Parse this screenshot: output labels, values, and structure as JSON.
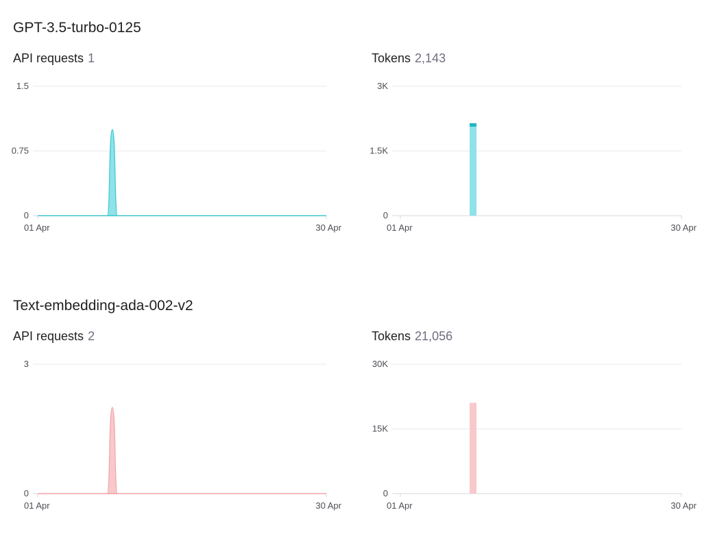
{
  "sections": [
    {
      "title": "GPT-3.5-turbo-0125",
      "requests": {
        "label": "API requests",
        "value": "1"
      },
      "tokens": {
        "label": "Tokens",
        "value": "2,143"
      }
    },
    {
      "title": "Text-embedding-ada-002-v2",
      "requests": {
        "label": "API requests",
        "value": "2"
      },
      "tokens": {
        "label": "Tokens",
        "value": "21,056"
      }
    }
  ],
  "colors": {
    "teal_fill": "#8ee2e8",
    "teal_line": "#3ec7d1",
    "teal_dark": "#1fb7c4",
    "pink_fill": "#f8c9cb",
    "pink_line": "#f2a3a7",
    "grid": "#e9e9ee",
    "axis": "#d7d7dd"
  },
  "chart_data": [
    {
      "id": "gpt35-requests",
      "type": "area",
      "color": "teal",
      "ylim": [
        0,
        1.5
      ],
      "yticks": [
        0,
        0.75,
        1.5
      ],
      "yticklabels": [
        "0",
        "0.75",
        "1.5"
      ],
      "x": [
        "01 Apr",
        "30 Apr"
      ],
      "xlim": [
        1,
        30
      ],
      "points": [
        [
          1,
          0
        ],
        [
          8,
          0
        ],
        [
          8.5,
          1
        ],
        [
          9,
          0
        ],
        [
          30,
          0
        ]
      ]
    },
    {
      "id": "gpt35-tokens",
      "type": "bar",
      "color": "teal",
      "ylim": [
        0,
        3000
      ],
      "yticks": [
        0,
        1500,
        3000
      ],
      "yticklabels": [
        "0",
        "1.5K",
        "3K"
      ],
      "x": [
        "01 Apr",
        "30 Apr"
      ],
      "xlim": [
        1,
        30
      ],
      "bars": [
        {
          "x": 8.5,
          "value": 2143,
          "segments": [
            2063,
            80
          ]
        }
      ]
    },
    {
      "id": "ada-requests",
      "type": "area",
      "color": "pink",
      "ylim": [
        0,
        3
      ],
      "yticks": [
        0,
        3
      ],
      "yticklabels": [
        "0",
        "3"
      ],
      "x": [
        "01 Apr",
        "30 Apr"
      ],
      "xlim": [
        1,
        30
      ],
      "points": [
        [
          1,
          0
        ],
        [
          8,
          0
        ],
        [
          8.5,
          2
        ],
        [
          9,
          0
        ],
        [
          30,
          0
        ]
      ]
    },
    {
      "id": "ada-tokens",
      "type": "bar",
      "color": "pink",
      "ylim": [
        0,
        30000
      ],
      "yticks": [
        0,
        15000,
        30000
      ],
      "yticklabels": [
        "0",
        "15K",
        "30K"
      ],
      "x": [
        "01 Apr",
        "30 Apr"
      ],
      "xlim": [
        1,
        30
      ],
      "bars": [
        {
          "x": 8.5,
          "value": 21056,
          "segments": [
            21056
          ]
        }
      ]
    }
  ]
}
